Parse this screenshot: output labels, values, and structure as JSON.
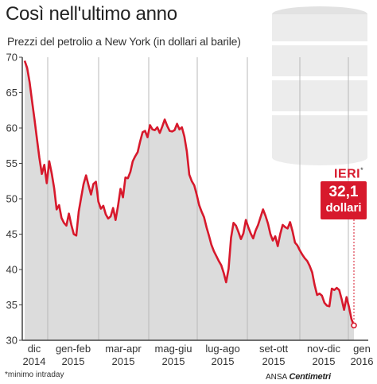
{
  "title": "Così nell'ultimo anno",
  "subtitle": "Prezzi del petrolio a New York (in dollari al barile)",
  "callout": {
    "label": "IERI",
    "marker": "*",
    "value": "32,1",
    "unit": "dollari"
  },
  "footnote": "*minimo intraday",
  "credit": {
    "agency": "ANSA",
    "brand": "Centimetri"
  },
  "colors": {
    "line": "#d7192c",
    "area": "#dcdcdc",
    "callout": "#d7192c",
    "barrel": "#e8e8e8"
  },
  "icons": [
    "oil-barrel-icon"
  ],
  "chart_data": {
    "type": "area",
    "title": "Così nell'ultimo anno",
    "subtitle": "Prezzi del petrolio a New York (in dollari al barile)",
    "xlabel": "",
    "ylabel": "",
    "ylim": [
      30,
      70
    ],
    "yticks": [
      30,
      35,
      40,
      45,
      50,
      55,
      60,
      65,
      70
    ],
    "grid": {
      "vertical": true,
      "horizontal": false
    },
    "x_tick_labels": [
      {
        "line1": "dic",
        "line2": "2014"
      },
      {
        "line1": "gen-feb",
        "line2": "2015"
      },
      {
        "line1": "mar-apr",
        "line2": "2015"
      },
      {
        "line1": "mag-giu",
        "line2": "2015"
      },
      {
        "line1": "lug-ago",
        "line2": "2015"
      },
      {
        "line1": "set-ott",
        "line2": "2015"
      },
      {
        "line1": "nov-dic",
        "line2": "2015"
      },
      {
        "line1": "gen",
        "line2": "2016"
      }
    ],
    "series": [
      {
        "values": [
          69.5,
          68.5,
          66.5,
          63.8,
          61.2,
          58.5,
          55.8,
          53.5,
          54.8,
          52.2,
          55.3,
          53.6,
          51.5,
          48.5,
          49.1,
          47.3,
          46.6,
          46.2,
          47.9,
          46.3,
          45.0,
          44.8,
          48.2,
          50.2,
          52.1,
          53.3,
          51.9,
          50.6,
          52.1,
          52.4,
          49.6,
          48.6,
          49.0,
          47.8,
          47.2,
          47.5,
          48.7,
          47.0,
          49.0,
          51.4,
          50.2,
          53.0,
          52.9,
          53.8,
          55.3,
          56.0,
          56.6,
          58.1,
          59.4,
          59.6,
          58.7,
          60.4,
          59.8,
          59.7,
          60.1,
          59.3,
          60.2,
          61.2,
          60.3,
          59.6,
          59.5,
          59.7,
          60.6,
          59.8,
          60.1,
          58.8,
          56.7,
          53.4,
          52.5,
          51.9,
          50.6,
          49.1,
          48.2,
          47.4,
          46.0,
          44.8,
          43.5,
          42.6,
          41.9,
          41.2,
          40.6,
          39.5,
          38.2,
          40.1,
          44.5,
          46.6,
          46.2,
          45.3,
          44.3,
          45.1,
          47.0,
          46.0,
          45.1,
          44.4,
          45.5,
          46.3,
          47.4,
          48.5,
          47.6,
          46.5,
          45.0,
          44.1,
          44.7,
          43.3,
          45.0,
          46.3,
          46.0,
          45.8,
          46.7,
          45.4,
          43.8,
          43.4,
          42.7,
          42.1,
          41.6,
          41.2,
          40.5,
          39.6,
          37.8,
          36.4,
          36.6,
          36.3,
          35.3,
          34.9,
          34.8,
          37.3,
          37.1,
          37.4,
          37.1,
          35.8,
          34.3,
          36.1,
          34.7,
          33.0,
          32.1
        ]
      }
    ],
    "last_point": {
      "value": 32.1,
      "label": "IERI"
    }
  }
}
